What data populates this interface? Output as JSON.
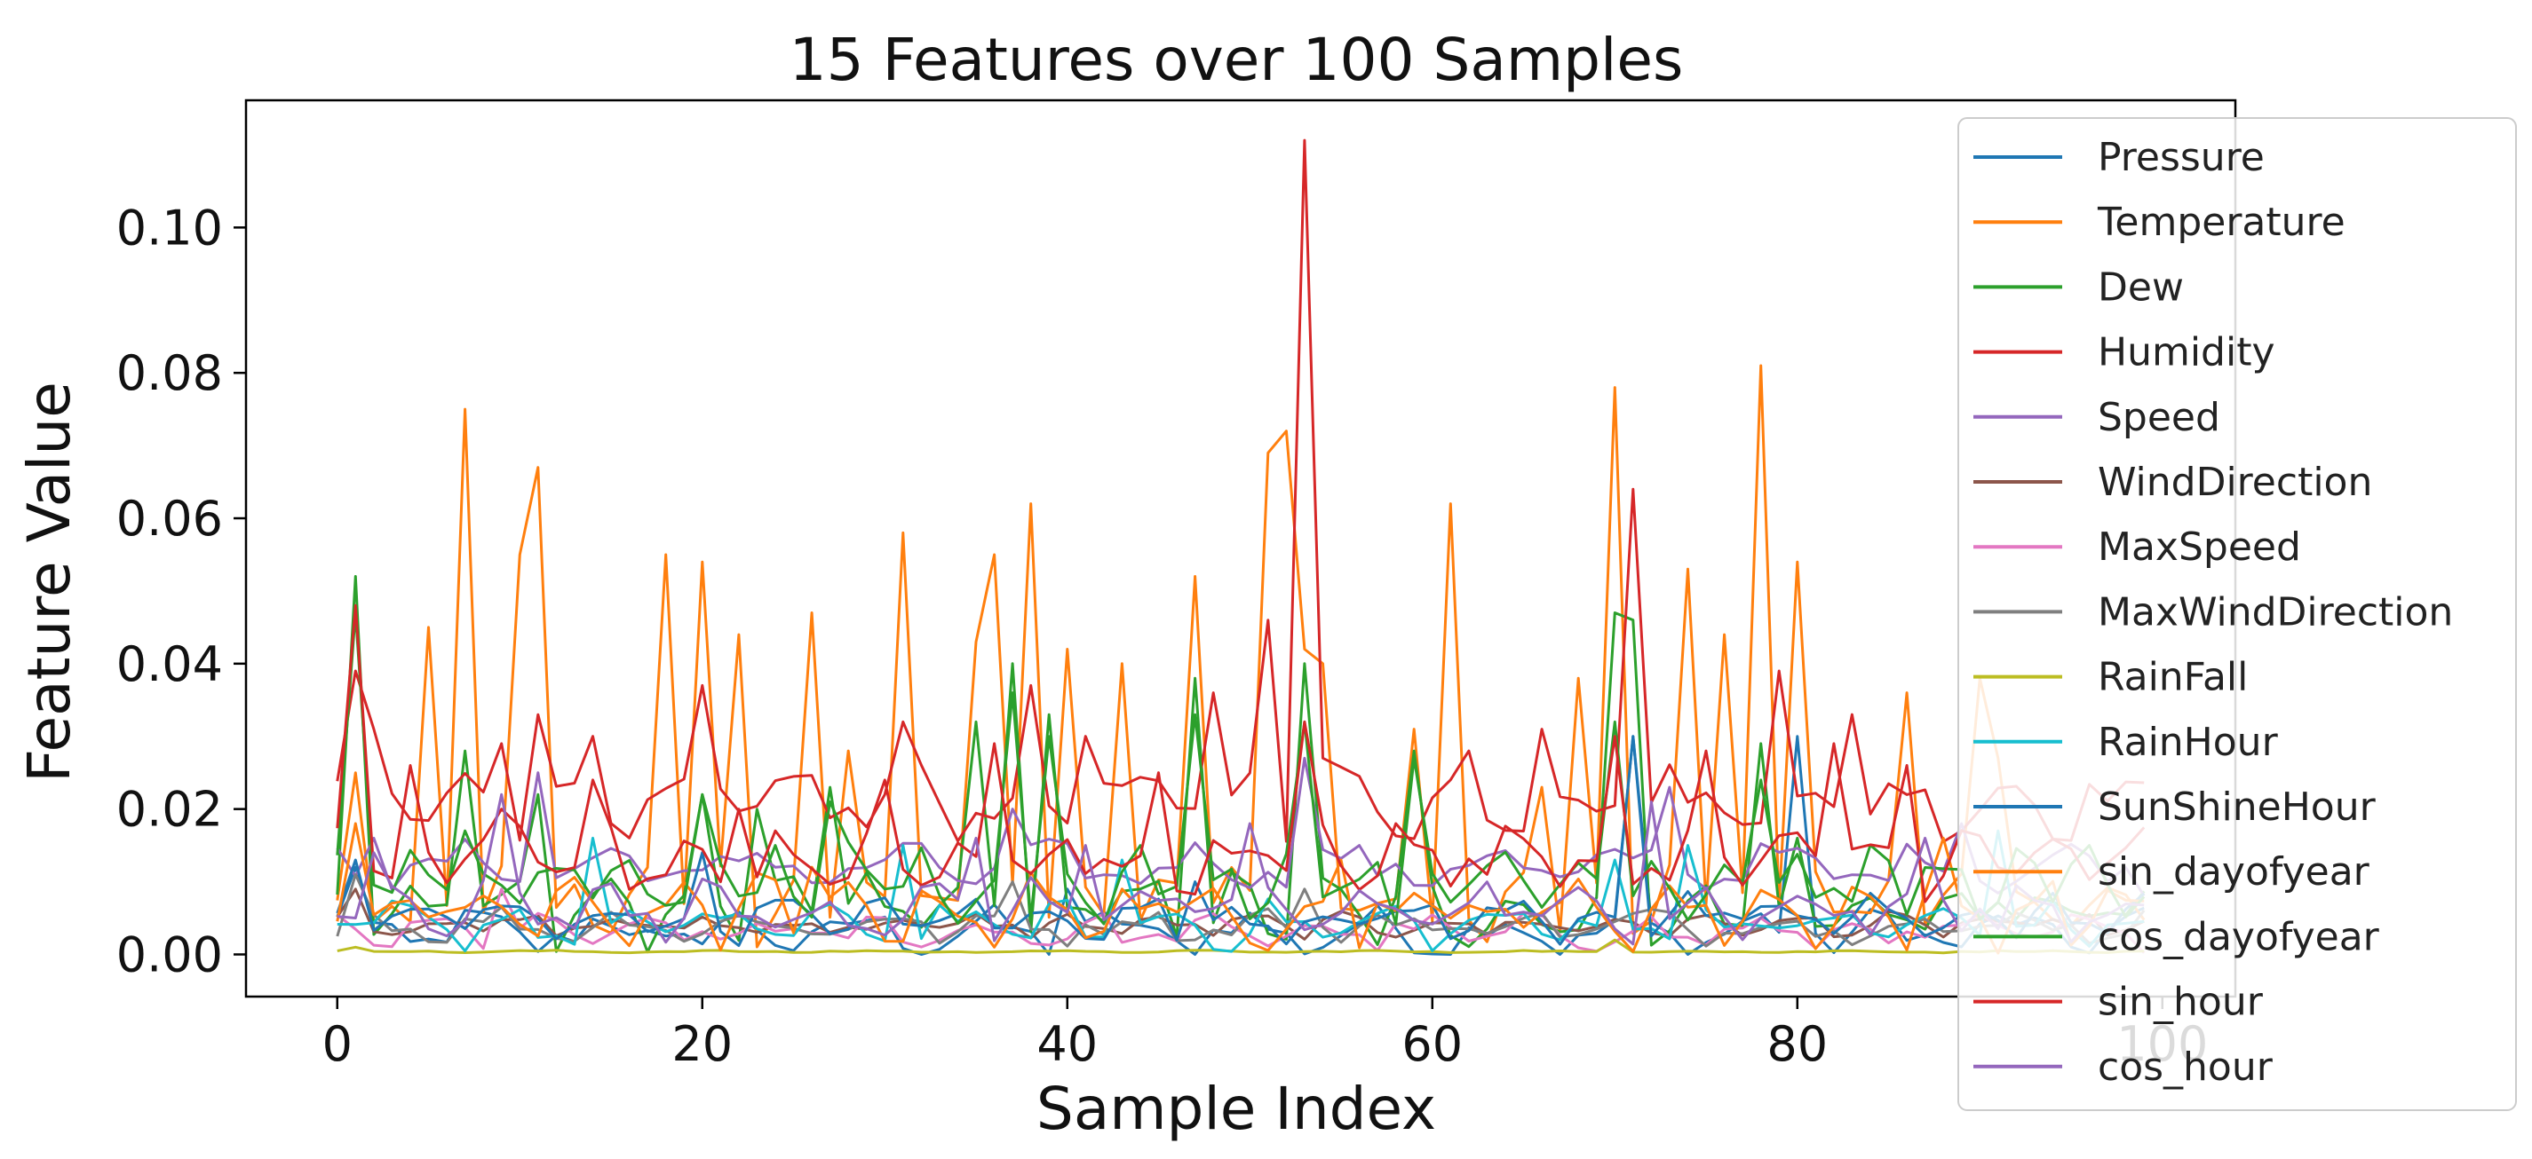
{
  "chart_data": {
    "type": "line",
    "title": "15 Features over 100 Samples",
    "xlabel": "Sample Index",
    "ylabel": "Feature Value",
    "xlim": [
      -5,
      104
    ],
    "ylim": [
      -0.0058,
      0.1175
    ],
    "xticks": [
      0,
      20,
      40,
      60,
      80,
      100
    ],
    "yticks": [
      0.0,
      0.02,
      0.04,
      0.06,
      0.08,
      0.1
    ],
    "xtick_labels": [
      "0",
      "20",
      "40",
      "60",
      "80",
      "100"
    ],
    "ytick_labels": [
      "0.00",
      "0.02",
      "0.04",
      "0.06",
      "0.08",
      "0.10"
    ],
    "grid": false,
    "legend_position": "right",
    "series": [
      {
        "name": "Pressure",
        "color": "#1f77b4",
        "base": 0.003,
        "amp": 0.004,
        "period": 7,
        "phase": 1,
        "spikes": [
          [
            1,
            0.012
          ],
          [
            40,
            0.009
          ],
          [
            71,
            0.03
          ],
          [
            80,
            0.03
          ]
        ]
      },
      {
        "name": "Temperature",
        "color": "#ff7f0e",
        "base": 0.007,
        "amp": 0.006,
        "period": 4,
        "phase": 0,
        "spikes": [
          [
            1,
            0.025
          ],
          [
            5,
            0.045
          ],
          [
            7,
            0.075
          ],
          [
            10,
            0.055
          ],
          [
            11,
            0.067
          ],
          [
            18,
            0.055
          ],
          [
            20,
            0.054
          ],
          [
            22,
            0.044
          ],
          [
            26,
            0.047
          ],
          [
            28,
            0.028
          ],
          [
            31,
            0.058
          ],
          [
            35,
            0.043
          ],
          [
            36,
            0.055
          ],
          [
            38,
            0.062
          ],
          [
            40,
            0.042
          ],
          [
            43,
            0.04
          ],
          [
            47,
            0.052
          ],
          [
            51,
            0.069
          ],
          [
            52,
            0.072
          ],
          [
            53,
            0.042
          ],
          [
            54,
            0.04
          ],
          [
            59,
            0.031
          ],
          [
            61,
            0.062
          ],
          [
            66,
            0.023
          ],
          [
            68,
            0.038
          ],
          [
            70,
            0.078
          ],
          [
            74,
            0.053
          ],
          [
            76,
            0.044
          ],
          [
            78,
            0.081
          ],
          [
            80,
            0.054
          ],
          [
            86,
            0.036
          ],
          [
            90,
            0.038
          ],
          [
            91,
            0.027
          ]
        ]
      },
      {
        "name": "Dew",
        "color": "#2ca02c",
        "base": 0.006,
        "amp": 0.006,
        "period": 5,
        "phase": 2,
        "spikes": [
          [
            1,
            0.052
          ],
          [
            7,
            0.028
          ],
          [
            11,
            0.022
          ],
          [
            20,
            0.022
          ],
          [
            23,
            0.02
          ],
          [
            27,
            0.023
          ],
          [
            35,
            0.032
          ],
          [
            37,
            0.04
          ],
          [
            39,
            0.033
          ],
          [
            47,
            0.038
          ],
          [
            53,
            0.04
          ],
          [
            59,
            0.028
          ],
          [
            70,
            0.047
          ],
          [
            71,
            0.046
          ],
          [
            78,
            0.029
          ],
          [
            80,
            0.016
          ]
        ]
      },
      {
        "name": "Humidity",
        "color": "#d62728",
        "base": 0.021,
        "amp": 0.006,
        "period": 6,
        "phase": 0,
        "spikes": [
          [
            1,
            0.039
          ],
          [
            2,
            0.031
          ],
          [
            9,
            0.029
          ],
          [
            11,
            0.033
          ],
          [
            14,
            0.03
          ],
          [
            20,
            0.037
          ],
          [
            31,
            0.032
          ],
          [
            38,
            0.037
          ],
          [
            41,
            0.03
          ],
          [
            48,
            0.036
          ],
          [
            51,
            0.046
          ],
          [
            53,
            0.112
          ],
          [
            54,
            0.027
          ],
          [
            62,
            0.028
          ],
          [
            66,
            0.031
          ],
          [
            71,
            0.064
          ],
          [
            79,
            0.039
          ],
          [
            83,
            0.033
          ]
        ]
      },
      {
        "name": "Speed",
        "color": "#9467bd",
        "base": 0.012,
        "amp": 0.004,
        "period": 8,
        "phase": 3,
        "spikes": [
          [
            2,
            0.016
          ],
          [
            11,
            0.025
          ],
          [
            37,
            0.02
          ],
          [
            53,
            0.027
          ],
          [
            73,
            0.023
          ],
          [
            89,
            0.018
          ]
        ]
      },
      {
        "name": "WindDirection",
        "color": "#8c564b",
        "base": 0.004,
        "amp": 0.002,
        "period": 5,
        "phase": 1,
        "spikes": [
          [
            1,
            0.009
          ]
        ]
      },
      {
        "name": "MaxSpeed",
        "color": "#e377c2",
        "base": 0.003,
        "amp": 0.003,
        "period": 6,
        "phase": 2,
        "spikes": [
          [
            9,
            0.009
          ]
        ]
      },
      {
        "name": "MaxWindDirection",
        "color": "#7f7f7f",
        "base": 0.004,
        "amp": 0.003,
        "period": 7,
        "phase": 0,
        "spikes": [
          [
            1,
            0.011
          ],
          [
            37,
            0.01
          ],
          [
            53,
            0.009
          ]
        ]
      },
      {
        "name": "RainFall",
        "color": "#bcbd22",
        "base": 0.0004,
        "amp": 0.0002,
        "period": 9,
        "phase": 0,
        "spikes": [
          [
            1,
            0.001
          ],
          [
            70,
            0.002
          ]
        ]
      },
      {
        "name": "RainHour",
        "color": "#17becf",
        "base": 0.004,
        "amp": 0.004,
        "period": 6,
        "phase": 4,
        "spikes": [
          [
            14,
            0.016
          ],
          [
            31,
            0.015
          ],
          [
            43,
            0.013
          ],
          [
            70,
            0.013
          ],
          [
            74,
            0.015
          ],
          [
            91,
            0.017
          ]
        ]
      },
      {
        "name": "SunShineHour",
        "color": "#1f77b4",
        "base": 0.005,
        "amp": 0.004,
        "period": 5,
        "phase": 2,
        "spikes": [
          [
            1,
            0.013
          ],
          [
            20,
            0.014
          ],
          [
            47,
            0.01
          ],
          [
            71,
            0.03
          ]
        ]
      },
      {
        "name": "sin_dayofyear",
        "color": "#ff7f0e",
        "base": 0.006,
        "amp": 0.006,
        "period": 5,
        "phase": 3,
        "spikes": [
          [
            1,
            0.018
          ],
          [
            26,
            0.012
          ],
          [
            55,
            0.013
          ],
          [
            88,
            0.016
          ]
        ]
      },
      {
        "name": "cos_dayofyear",
        "color": "#2ca02c",
        "base": 0.01,
        "amp": 0.006,
        "period": 4,
        "phase": 1,
        "spikes": [
          [
            1,
            0.047
          ],
          [
            7,
            0.017
          ],
          [
            20,
            0.022
          ],
          [
            27,
            0.021
          ],
          [
            37,
            0.036
          ],
          [
            39,
            0.03
          ],
          [
            47,
            0.033
          ],
          [
            53,
            0.032
          ],
          [
            59,
            0.027
          ],
          [
            70,
            0.032
          ],
          [
            78,
            0.024
          ]
        ]
      },
      {
        "name": "sin_hour",
        "color": "#d62728",
        "base": 0.013,
        "amp": 0.006,
        "period": 5,
        "phase": 2,
        "spikes": [
          [
            1,
            0.048
          ],
          [
            4,
            0.026
          ],
          [
            9,
            0.02
          ],
          [
            14,
            0.024
          ],
          [
            22,
            0.02
          ],
          [
            30,
            0.024
          ],
          [
            36,
            0.029
          ],
          [
            45,
            0.025
          ],
          [
            53,
            0.032
          ],
          [
            58,
            0.018
          ],
          [
            70,
            0.03
          ],
          [
            75,
            0.028
          ],
          [
            82,
            0.029
          ],
          [
            86,
            0.026
          ]
        ]
      },
      {
        "name": "cos_hour",
        "color": "#9467bd",
        "base": 0.006,
        "amp": 0.005,
        "period": 6,
        "phase": 5,
        "spikes": [
          [
            2,
            0.014
          ],
          [
            9,
            0.022
          ],
          [
            35,
            0.016
          ],
          [
            41,
            0.015
          ],
          [
            50,
            0.018
          ],
          [
            72,
            0.021
          ],
          [
            87,
            0.016
          ]
        ]
      }
    ]
  }
}
